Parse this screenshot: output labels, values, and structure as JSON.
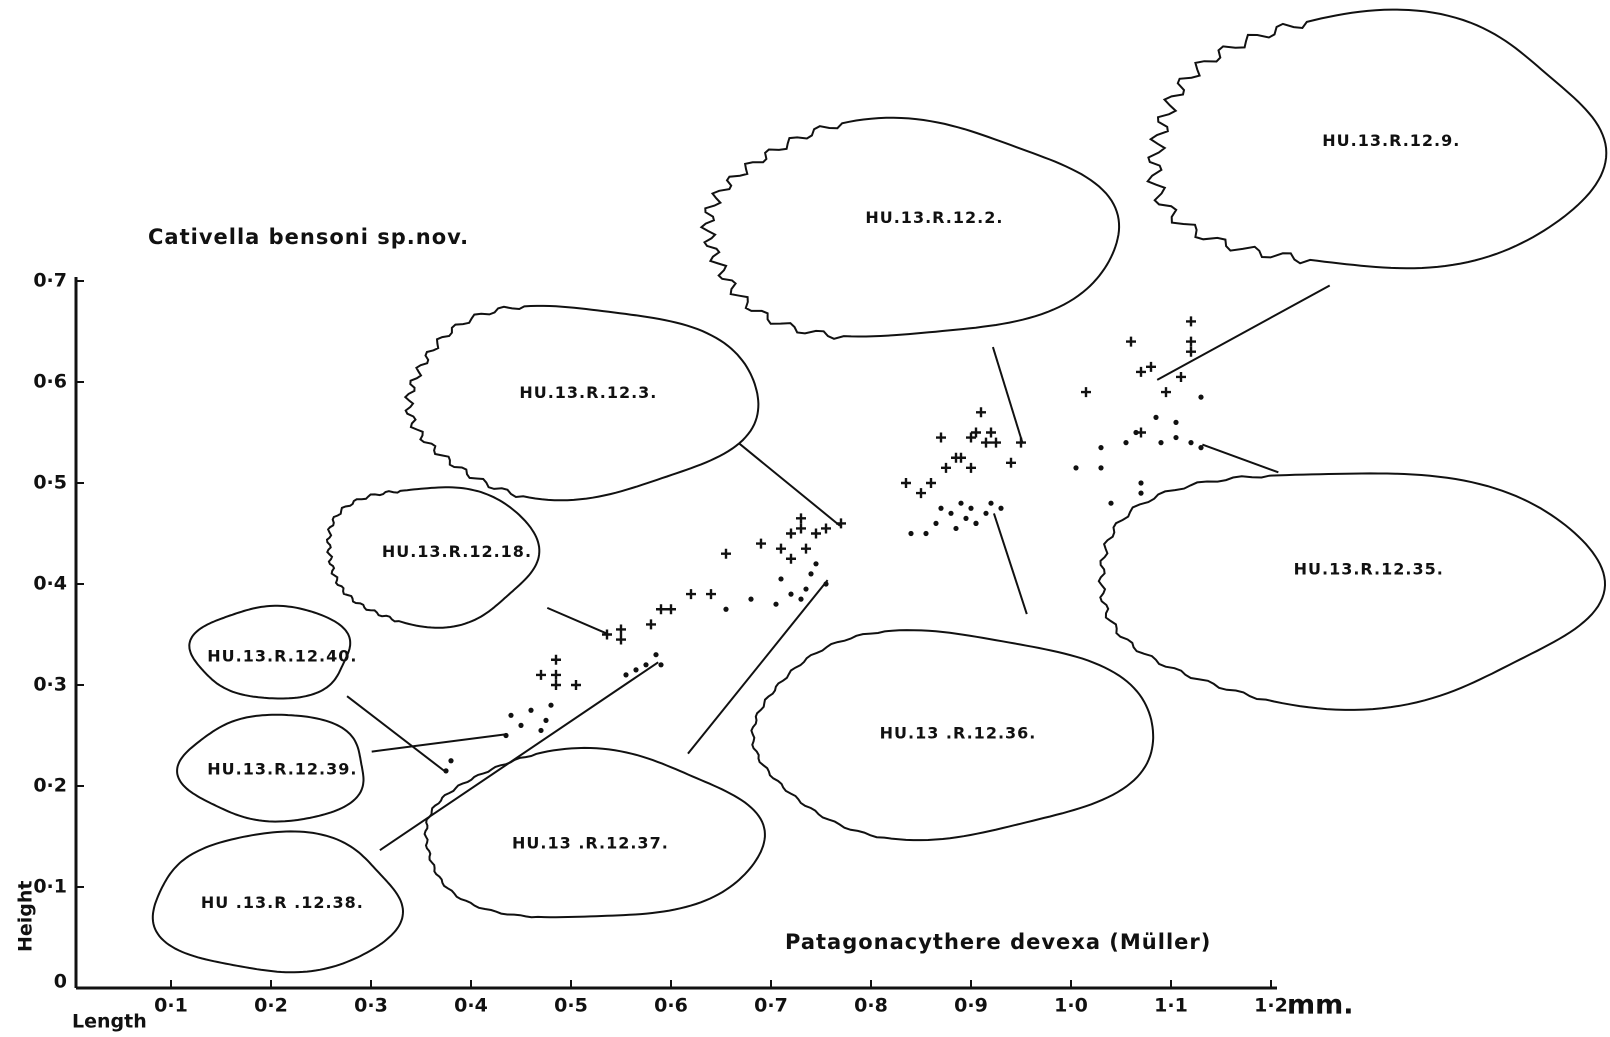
{
  "chart_data": {
    "type": "scatter",
    "x_label": "Length",
    "y_label": "Height",
    "x_unit": "mm.",
    "xlim": [
      0,
      1.2
    ],
    "ylim": [
      0,
      0.7
    ],
    "xticks": [
      {
        "value": 0.1,
        "label": "0·1"
      },
      {
        "value": 0.2,
        "label": "0·2"
      },
      {
        "value": 0.3,
        "label": "0·3"
      },
      {
        "value": 0.4,
        "label": "0·4"
      },
      {
        "value": 0.5,
        "label": "0·5"
      },
      {
        "value": 0.6,
        "label": "0·6"
      },
      {
        "value": 0.7,
        "label": "0·7"
      },
      {
        "value": 0.8,
        "label": "0·8"
      },
      {
        "value": 0.9,
        "label": "0·9"
      },
      {
        "value": 1.0,
        "label": "1·0"
      },
      {
        "value": 1.1,
        "label": "1·1"
      },
      {
        "value": 1.2,
        "label": "1·2"
      }
    ],
    "yticks": [
      0,
      {
        "value": 0.1,
        "label": "0·1"
      },
      {
        "value": 0.2,
        "label": "0·2"
      },
      {
        "value": 0.3,
        "label": "0·3"
      },
      {
        "value": 0.4,
        "label": "0·4"
      },
      {
        "value": 0.5,
        "label": "0·5"
      },
      {
        "value": 0.6,
        "label": "0·6"
      },
      {
        "value": 0.7,
        "label": "0·7"
      }
    ],
    "grid": false,
    "series": [
      {
        "name": "Cativella bensoni sp.nov.",
        "marker": "cross",
        "color": "#111111",
        "x": [
          0.47,
          0.485,
          0.485,
          0.485,
          0.505,
          0.536,
          0.55,
          0.55,
          0.58,
          0.59,
          0.6,
          0.62,
          0.64,
          0.655,
          0.69,
          0.71,
          0.72,
          0.73,
          0.73,
          0.72,
          0.735,
          0.745,
          0.755,
          0.77,
          0.835,
          0.85,
          0.86,
          0.87,
          0.875,
          0.885,
          0.89,
          0.9,
          0.9,
          0.91,
          0.905,
          0.92,
          0.915,
          0.925,
          0.94,
          0.95,
          1.015,
          1.06,
          1.07,
          1.08,
          1.11,
          1.12,
          1.12,
          1.12,
          1.07,
          1.095
        ],
        "values": [
          0.31,
          0.325,
          0.31,
          0.3,
          0.3,
          0.35,
          0.355,
          0.345,
          0.36,
          0.375,
          0.375,
          0.39,
          0.39,
          0.43,
          0.44,
          0.435,
          0.45,
          0.465,
          0.455,
          0.425,
          0.435,
          0.45,
          0.455,
          0.46,
          0.5,
          0.49,
          0.5,
          0.545,
          0.515,
          0.525,
          0.525,
          0.515,
          0.545,
          0.57,
          0.55,
          0.55,
          0.54,
          0.54,
          0.52,
          0.54,
          0.59,
          0.64,
          0.61,
          0.615,
          0.605,
          0.66,
          0.64,
          0.63,
          0.55,
          0.59
        ]
      },
      {
        "name": "Patagonacythere devexa (Müller)",
        "marker": "dot",
        "color": "#111111",
        "x": [
          0.375,
          0.38,
          0.435,
          0.44,
          0.45,
          0.46,
          0.47,
          0.475,
          0.48,
          0.555,
          0.565,
          0.575,
          0.585,
          0.59,
          0.655,
          0.68,
          0.705,
          0.71,
          0.72,
          0.73,
          0.735,
          0.74,
          0.745,
          0.755,
          0.84,
          0.855,
          0.865,
          0.87,
          0.88,
          0.89,
          0.895,
          0.9,
          0.905,
          0.915,
          0.92,
          0.93,
          0.885,
          0.905,
          1.005,
          1.03,
          1.03,
          1.04,
          1.055,
          1.065,
          1.07,
          1.07,
          1.085,
          1.09,
          1.105,
          1.105,
          1.12,
          1.13,
          1.13
        ],
        "values": [
          0.215,
          0.225,
          0.25,
          0.27,
          0.26,
          0.275,
          0.255,
          0.265,
          0.28,
          0.31,
          0.315,
          0.32,
          0.33,
          0.32,
          0.375,
          0.385,
          0.38,
          0.405,
          0.39,
          0.385,
          0.395,
          0.41,
          0.42,
          0.4,
          0.45,
          0.45,
          0.46,
          0.475,
          0.47,
          0.48,
          0.465,
          0.475,
          0.46,
          0.47,
          0.48,
          0.475,
          0.455,
          0.46,
          0.515,
          0.535,
          0.515,
          0.48,
          0.54,
          0.55,
          0.5,
          0.49,
          0.565,
          0.54,
          0.56,
          0.545,
          0.54,
          0.535,
          0.585
        ]
      }
    ],
    "annotations": [
      "HU.13.R.12.9.",
      "HU.13.R.12.2.",
      "HU.13.R.12.3.",
      "HU.13.R.12.18.",
      "HU.13.R.12.40.",
      "HU.13.R.12.39.",
      "HU .13.R .12.38.",
      "HU.13 .R.12.37.",
      "HU.13 .R.12.36.",
      "HU.13.R.12.35."
    ]
  }
}
